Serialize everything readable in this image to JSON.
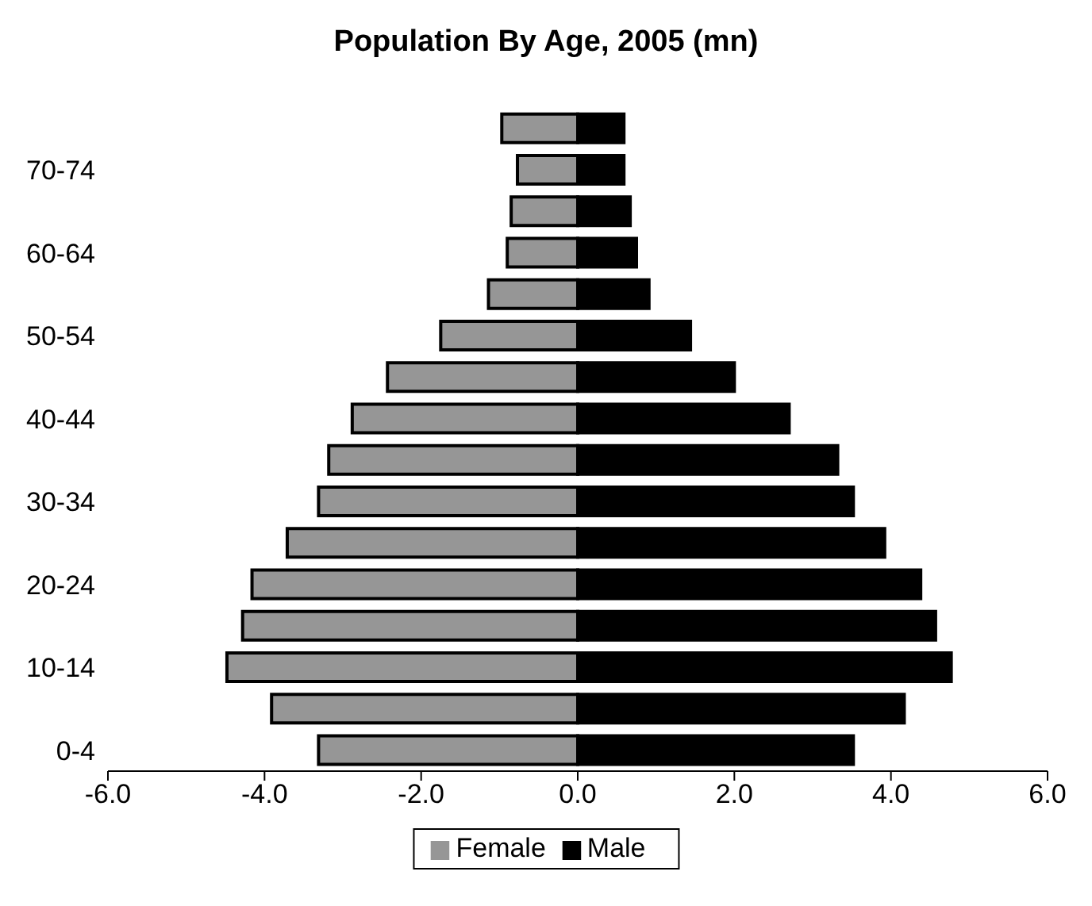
{
  "chart_data": {
    "type": "bar",
    "orientation": "horizontal",
    "stacked": true,
    "title": "Population By Age, 2005 (mn)",
    "categories": [
      null,
      "70-74",
      null,
      "60-64",
      null,
      "50-54",
      null,
      "40-44",
      null,
      "30-34",
      null,
      "20-24",
      null,
      "10-14",
      null,
      "0-4"
    ],
    "series": [
      {
        "name": "Male",
        "color": "#000000",
        "values": [
          0.59,
          0.59,
          0.67,
          0.75,
          0.91,
          1.44,
          2.0,
          2.7,
          3.32,
          3.52,
          3.92,
          4.38,
          4.57,
          4.77,
          4.17,
          3.52
        ]
      },
      {
        "name": "Female",
        "color": "#969696",
        "values": [
          -0.97,
          -0.77,
          -0.85,
          -0.9,
          -1.14,
          -1.75,
          -2.43,
          -2.88,
          -3.18,
          -3.31,
          -3.71,
          -4.16,
          -4.28,
          -4.48,
          -3.91,
          -3.31
        ]
      }
    ],
    "xlim": [
      -6,
      6
    ],
    "xticks": [
      {
        "value": -6,
        "label": "-6.0"
      },
      {
        "value": -4,
        "label": "-4.0"
      },
      {
        "value": -2,
        "label": "-2.0"
      },
      {
        "value": 0,
        "label": "0.0"
      },
      {
        "value": 2,
        "label": "2.0"
      },
      {
        "value": 4,
        "label": "4.0"
      },
      {
        "value": 6,
        "label": "6.0"
      }
    ],
    "grid": false,
    "legend": "bottom"
  }
}
